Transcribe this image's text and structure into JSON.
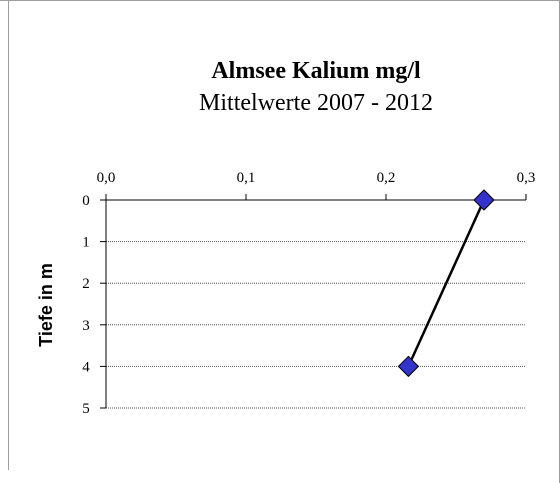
{
  "chart_data": {
    "type": "line",
    "title": "Almsee Kalium mg/l",
    "subtitle": "Mittelwerte 2007 - 2012",
    "xlabel": "",
    "ylabel": "Tiefe in m",
    "x_axis_position": "top",
    "y_axis_inverted": true,
    "xlim": [
      0.0,
      0.3
    ],
    "ylim": [
      0,
      5
    ],
    "x_ticks": [
      "0,0",
      "0,1",
      "0,2",
      "0,3"
    ],
    "x_tick_values": [
      0.0,
      0.1,
      0.2,
      0.3
    ],
    "y_ticks": [
      "0",
      "1",
      "2",
      "3",
      "4",
      "5"
    ],
    "y_tick_values": [
      0,
      1,
      2,
      3,
      4,
      5
    ],
    "grid": "horizontal dotted",
    "series": [
      {
        "marker": "diamond",
        "marker_color": "#3333cc",
        "line_color": "#000000",
        "points": [
          {
            "x": 0.27,
            "y": 0
          },
          {
            "x": 0.216,
            "y": 4
          }
        ]
      }
    ]
  }
}
